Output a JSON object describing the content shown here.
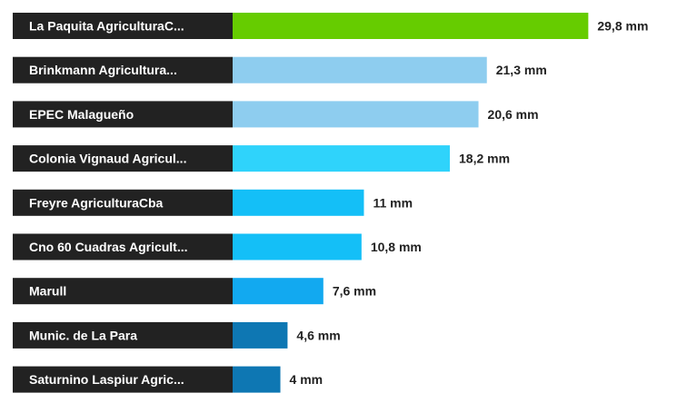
{
  "chart_data": {
    "type": "bar",
    "orientation": "horizontal",
    "unit": "mm",
    "categories": [
      "La Paquita AgriculturaC...",
      "Brinkmann Agricultura...",
      "EPEC Malagueño",
      "Colonia Vignaud Agricul...",
      "Freyre AgriculturaCba",
      "Cno 60 Cuadras Agricult...",
      "Marull",
      "Munic. de La Para",
      "Saturnino Laspiur Agric..."
    ],
    "values": [
      29.8,
      21.3,
      20.6,
      18.2,
      11,
      10.8,
      7.6,
      4.6,
      4
    ],
    "value_labels": [
      "29,8 mm",
      "21,3 mm",
      "20,6 mm",
      "18,2 mm",
      "11 mm",
      "10,8 mm",
      "7,6 mm",
      "4,6 mm",
      "4 mm"
    ],
    "bar_colors": [
      "#66cc00",
      "#8ecdef",
      "#8ecdef",
      "#2fd3fb",
      "#14bff7",
      "#14bff7",
      "#12a9f0",
      "#0e77b3",
      "#0e77b3"
    ],
    "label_background": "#222222",
    "xlim": [
      0,
      30
    ],
    "grid": false,
    "legend": "none"
  }
}
